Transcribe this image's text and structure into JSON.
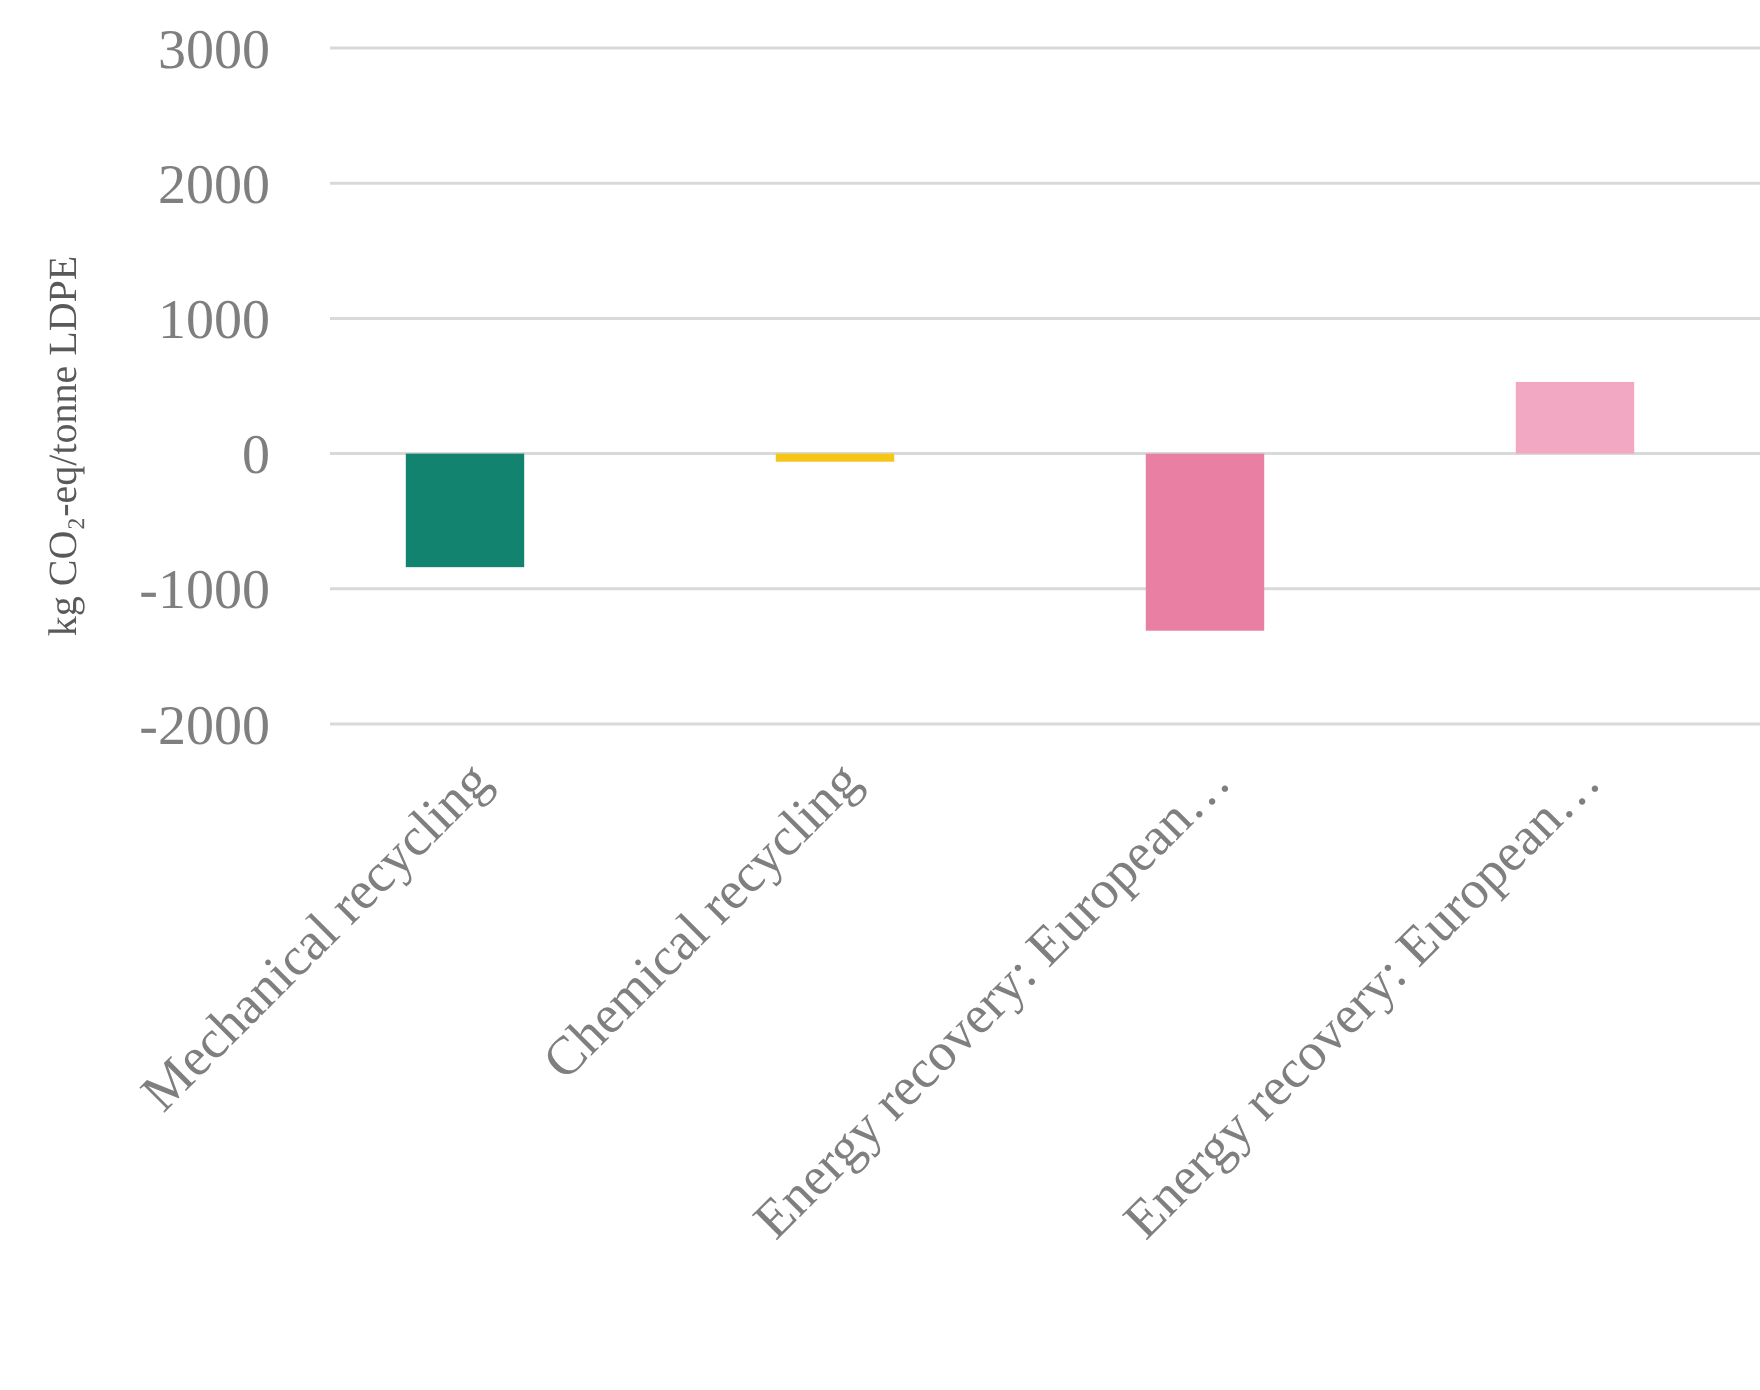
{
  "chart_data": {
    "type": "bar",
    "ylabel": "kg CO₂-eq/tonne LDPE",
    "categories": [
      "Mechanical recycling",
      "Chemical recycling",
      "Energy recovery: European…",
      "Energy recovery: European…"
    ],
    "values": [
      -840,
      -60,
      -1310,
      530
    ],
    "colors": [
      "#12836f",
      "#f5c518",
      "#e97fa3",
      "#f2a8c2"
    ],
    "ylim": [
      -2000,
      3000
    ],
    "yticks": [
      -2000,
      -1000,
      0,
      1000,
      2000,
      3000
    ],
    "grid": "y"
  }
}
